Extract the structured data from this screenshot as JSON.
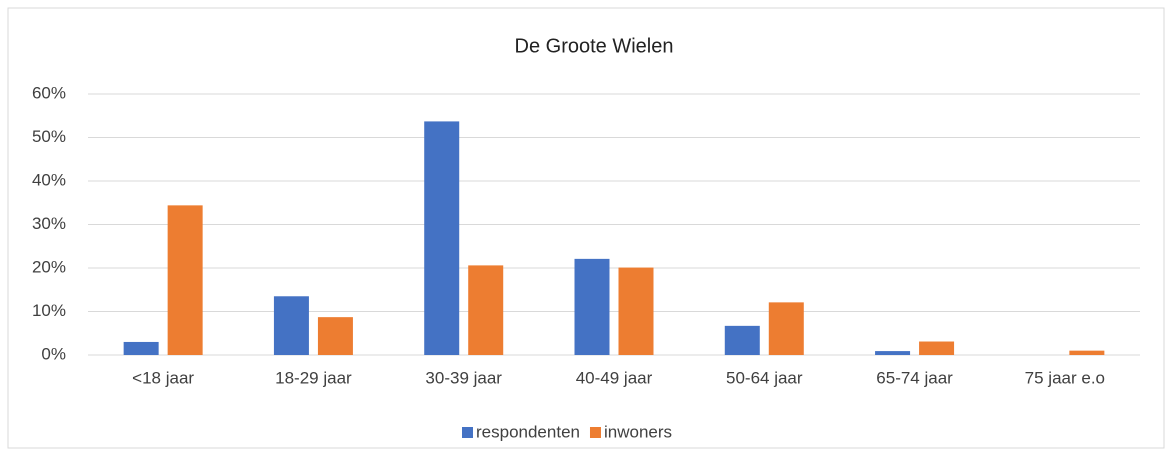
{
  "chart_data": {
    "type": "bar",
    "title": "De Groote Wielen",
    "categories": [
      "<18 jaar",
      "18-29 jaar",
      "30-39 jaar",
      "40-49 jaar",
      "50-64 jaar",
      "65-74 jaar",
      "75 jaar e.o"
    ],
    "series": [
      {
        "name": "respondenten",
        "color": "#4472c4",
        "values": [
          3.0,
          13.5,
          53.7,
          22.1,
          6.7,
          0.9,
          0
        ]
      },
      {
        "name": "inwoners",
        "color": "#ed7d31",
        "values": [
          34.4,
          8.7,
          20.6,
          20.1,
          12.1,
          3.1,
          1.0
        ]
      }
    ],
    "ylim": [
      0,
      60
    ],
    "yticks": [
      {
        "value": 0,
        "label": "0%"
      },
      {
        "value": 10,
        "label": "10%"
      },
      {
        "value": 20,
        "label": "20%"
      },
      {
        "value": 30,
        "label": "30%"
      },
      {
        "value": 40,
        "label": "40%"
      },
      {
        "value": 50,
        "label": "50%"
      },
      {
        "value": 60,
        "label": "60%"
      }
    ],
    "grid": true,
    "legend": "bottom"
  }
}
